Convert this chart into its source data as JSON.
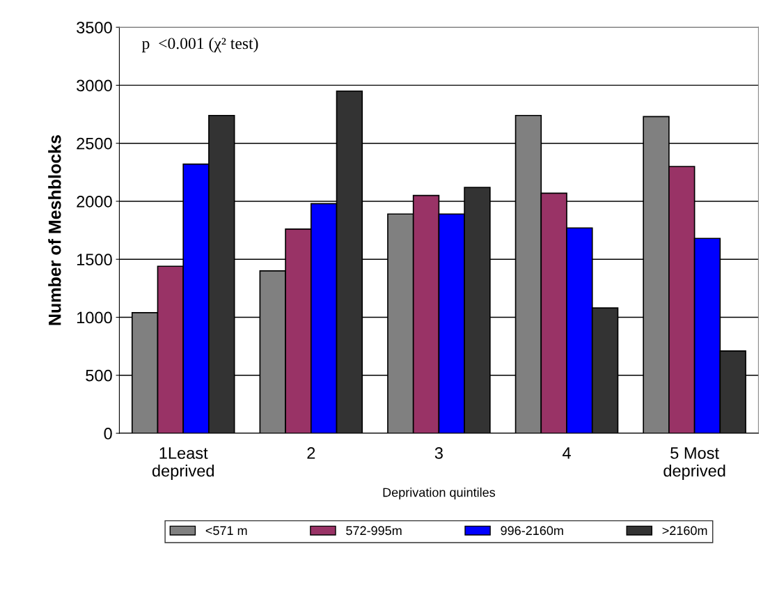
{
  "chart_data": {
    "type": "bar",
    "categories": [
      "1Least\ndeprived",
      "2",
      "3",
      "4",
      "5 Most\ndeprived"
    ],
    "series": [
      {
        "name": "<571 m",
        "color": "#808080",
        "values": [
          1040,
          1400,
          1890,
          2740,
          2730
        ]
      },
      {
        "name": "572-995m",
        "color": "#993366",
        "values": [
          1440,
          1760,
          2050,
          2070,
          2300
        ]
      },
      {
        "name": "996-2160m",
        "color": "#0000ff",
        "values": [
          2320,
          1980,
          1890,
          1770,
          1680
        ]
      },
      {
        "name": ">2160m",
        "color": "#333333",
        "values": [
          2740,
          2950,
          2120,
          1080,
          710
        ]
      }
    ],
    "ylabel": "Number of Meshblocks",
    "xlabel": "Deprivation quintiles",
    "ylim": [
      0,
      3500
    ],
    "yticks": [
      0,
      500,
      1000,
      1500,
      2000,
      2500,
      3000,
      3500
    ],
    "grid": "y",
    "legend": "bottom",
    "annotations": [
      "p  <0.001 (χ² test)"
    ]
  }
}
